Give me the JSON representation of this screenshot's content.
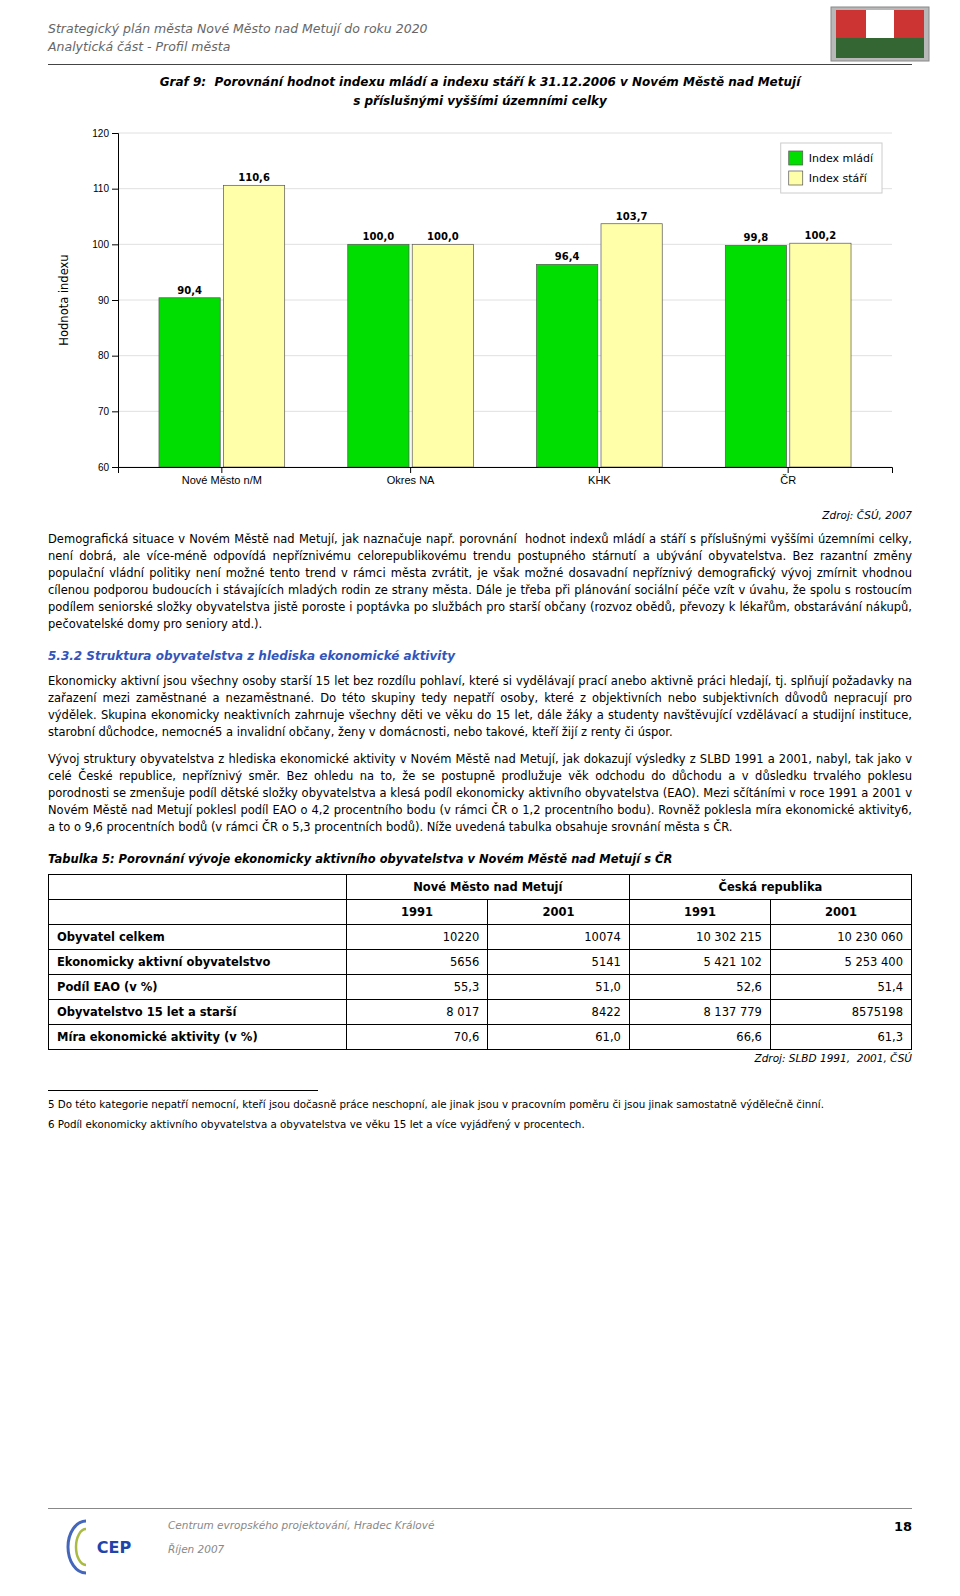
{
  "header_line1": "Strategický plán města Nové Město nad Metují do roku 2020",
  "header_line2": "Analytická část - Profil města",
  "chart_data": {
    "type": "bar",
    "title": "Graf 9:  Porovnání hodnot indexu mládí a indexu stáří k 31.12.2006 v Novém Městě nad Metují",
    "subtitle": "s příslušnými vyššími územními celky",
    "categories": [
      "Nové Město n/M",
      "Okres NA",
      "KHK",
      "ČR"
    ],
    "series": [
      {
        "name": "Index mládí",
        "color": "#00DD00",
        "values": [
          90.4,
          100.0,
          96.4,
          99.8
        ],
        "value_labels": [
          "90,4",
          "100,0",
          "96,4",
          "99,8"
        ]
      },
      {
        "name": "Index stáří",
        "color": "#FFFFAA",
        "values": [
          110.6,
          100.0,
          103.7,
          100.2
        ],
        "value_labels": [
          "110,6",
          "100,0",
          "103,7",
          "100,2"
        ]
      }
    ],
    "ylabel": "Hodnota indexu",
    "ylim": [
      60,
      120
    ],
    "yticks": [
      60,
      70,
      80,
      90,
      100,
      110,
      120
    ],
    "grid": true,
    "legend": "top-right",
    "data_labels": true,
    "source": "Zdroj: ČSÚ, 2007"
  },
  "para1": "Demografická situace v Novém Městě nad Metují, jak naznačuje např. porovnání  hodnot indexů mládí a stáří s příslušnými vyššími územními celky, není dobrá, ale více-méně odpovídá nepříznivému celorepublikovému trendu postupného stárnutí a ubývání obyvatelstva. Bez razantní změny populační vládní politiky není možné tento trend v rámci města zvrátit, je však možné dosavadní nepříznivý demografický vývoj zmírnit vhodnou cílenou podporou budoucích i stávajících mladých rodin ze strany města. Dále je třeba při plánování sociální péče vzít v úvahu, že spolu s rostoucím podílem seniorské složky obyvatelstva jistě poroste i poptávka po službách pro starší občany (rozvoz obědů, převozy k lékařům, obstarávání nákupů, pečovatelské domy pro seniory atd.).",
  "section_title": "5.3.2 Struktura obyvatelstva z hlediska ekonomické aktivity",
  "para2": "Ekonomicky aktivní jsou všechny osoby starší 15 let bez rozdílu pohlaví, které si vydělávají prací anebo aktivně práci hledají, tj. splňují požadavky na zařazení mezi zaměstnané a nezaměstnané. Do této skupiny tedy nepatří osoby, které z objektivních nebo subjektivních důvodů nepracují pro výdělek. Skupina ekonomicky neaktivních zahrnuje všechny děti ve věku do 15 let, dále žáky a studenty navštěvující vzdělávací a studijní instituce, starobní důchodce, nemocné5 a invalidní občany, ženy v domácnosti, nebo takové, kteří žijí z renty či úspor.",
  "para3": "Vývoj struktury obyvatelstva z hlediska ekonomické aktivity v Novém Městě nad Metují, jak dokazují výsledky z SLBD 1991 a 2001, nabyl, tak jako v celé České republice, nepříznivý směr. Bez ohledu na to, že se postupně prodlužuje věk odchodu do důchodu a v důsledku trvalého poklesu porodnosti se zmenšuje podíl dětské složky obyvatelstva a klesá podíl ekonomicky aktivního obyvatelstva (EAO). Mezi sčítáními v roce 1991 a 2001 v Novém Městě nad Metují poklesl podíl EAO o 4,2 procentního bodu (v rámci ČR o 1,2 procentního bodu). Rovněž poklesla míra ekonomické aktivity6, a to o 9,6 procentních bodů (v rámci ČR o 5,3 procentních bodů). Níže uvedená tabulka obsahuje srovnání města s ČR.",
  "table": {
    "title": "Tabulka 5: Porovnání vývoje ekonomicky aktivního obyvatelstva v Novém Městě nad Metují s ČR",
    "column_groups": [
      "Nové Město nad Metují",
      "Česká republika"
    ],
    "columns": [
      "1991",
      "2001",
      "1991",
      "2001"
    ],
    "rows": [
      [
        "Obyvatel celkem",
        "10220",
        "10074",
        "10 302 215",
        "10 230 060"
      ],
      [
        "Ekonomicky aktivní obyvatelstvo",
        "5656",
        "5141",
        "5 421 102",
        "5 253 400"
      ],
      [
        "Podíl EAO (v %)",
        "55,3",
        "51,0",
        "52,6",
        "51,4"
      ],
      [
        "Obyvatelstvo 15 let a starší",
        "8 017",
        "8422",
        "8 137 779",
        "8575198"
      ],
      [
        "Míra ekonomické aktivity (v %)",
        "70,6",
        "61,0",
        "66,6",
        "61,3"
      ]
    ],
    "source": "Zdroj: SLBD 1991,  2001, ČSÚ"
  },
  "footnote5": "5 Do této kategorie nepatří nemocní, kteří jsou dočasně práce neschopní, ale jinak jsou v pracovním poměru či jsou jinak samostatně výdělečně činní.",
  "footnote6": "6 Podíl ekonomicky aktivního obyvatelstva a obyvatelstva ve věku 15 let a více vyjádřený v procentech.",
  "logo_text": "CEP",
  "footer_org": "Centrum evropského projektování, Hradec Králové",
  "footer_date": "Říjen 2007",
  "footer_page": "18"
}
